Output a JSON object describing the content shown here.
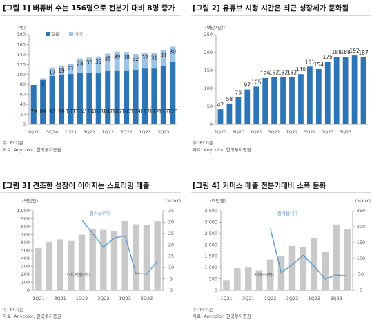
{
  "chart_data": [
    {
      "type": "stacked_bar",
      "title": "[그림 1] 버튜버 수는 156명으로 전분기 대비 8명 증가",
      "ylabel": "(명)",
      "note": "주: FY기준",
      "source": "자료: Anycolor, 한국투자증권",
      "legend": "top-left",
      "categories": [
        "1Q20",
        null,
        "3Q20",
        null,
        "1Q21",
        null,
        "3Q21",
        null,
        "1Q22",
        null,
        "3Q22",
        null,
        "1Q23",
        null,
        "3Q23",
        null
      ],
      "series": [
        {
          "name": "일본",
          "color": "#2e75b6",
          "values": [
            79,
            89,
            97,
            99,
            101,
            104,
            104,
            103,
            107,
            107,
            107,
            109,
            112,
            112,
            118,
            126
          ]
        },
        {
          "name": "미국",
          "color": "#9dc3e6",
          "values": [
            null,
            3,
            17,
            19,
            21,
            28,
            30,
            33,
            35,
            39,
            38,
            32,
            32,
            31,
            31,
            30
          ]
        }
      ],
      "ylim": [
        0,
        180
      ],
      "yticks": [
        0,
        20,
        40,
        60,
        80,
        100,
        120,
        140,
        160,
        180
      ]
    },
    {
      "type": "bar",
      "title": "[그림 2] 유튜브 시청 시간은 최근 성장세가 둔화됨",
      "ylabel": "(백만시간)",
      "note": "주: FY기준",
      "source": "자료: Anycolor, 한국투자증권",
      "categories": [
        "1Q20",
        null,
        "3Q20",
        null,
        "1Q21",
        null,
        "3Q21",
        null,
        "1Q22",
        null,
        "3Q22",
        null,
        "1Q23",
        null,
        "3Q23",
        null,
        null
      ],
      "series": [
        {
          "name": "유튜브 시청 시간",
          "color": "#2e75b6",
          "values": [
            42,
            58,
            76,
            97,
            105,
            129,
            132,
            132,
            132,
            140,
            161,
            154,
            175,
            188,
            188,
            192,
            187
          ]
        }
      ],
      "ylim": [
        0,
        250
      ],
      "yticks": [
        0,
        50,
        100,
        150,
        200,
        250
      ]
    },
    {
      "type": "combo",
      "title": "[그림 3] 견조한 성장이 이어지는 스트리밍 매출",
      "ylabel": "(백만엔)",
      "y2label": "(%YoY)",
      "note": "주: FY기준",
      "source": "자료: Anycolor, 한국투자증권",
      "categories": [
        "1Q21",
        null,
        "3Q21",
        null,
        "1Q22",
        null,
        "3Q22",
        null,
        "1Q23",
        null,
        "3Q23",
        null
      ],
      "series": [
        {
          "name": "스트리밍(좌)",
          "type": "bar",
          "color": "#c9c9c9",
          "values": [
            530,
            610,
            640,
            620,
            700,
            770,
            760,
            740,
            870,
            830,
            820,
            870
          ]
        },
        {
          "name": "증가율(우)",
          "type": "line",
          "axis": "y2",
          "color": "#5b9bd5",
          "values": [
            null,
            null,
            null,
            null,
            31,
            25,
            19,
            23,
            24,
            7.5,
            7,
            13
          ]
        }
      ],
      "ylim": [
        0,
        1000
      ],
      "yticks": [
        0,
        100,
        200,
        300,
        400,
        500,
        600,
        700,
        800,
        900,
        {
          "value": 1000,
          "label": "1,000"
        }
      ],
      "y2lim": [
        0,
        35
      ],
      "y2ticks": [
        0,
        5,
        10,
        15,
        20,
        25,
        30,
        35
      ]
    },
    {
      "type": "combo",
      "title": "[그림 4] 커머스 매출 전분기대비 소폭 둔화",
      "ylabel": "(백만엔)",
      "y2label": "(%YoY)",
      "note": "주: FY기준",
      "source": "자료: Anycolor, 한국투자증권",
      "categories": [
        "1Q21",
        null,
        "3Q21",
        null,
        "1Q22",
        null,
        "3Q22",
        null,
        "1Q23",
        null,
        "3Q23",
        null
      ],
      "series": [
        {
          "name": "커머스(좌)",
          "type": "bar",
          "color": "#c9c9c9",
          "values": [
            450,
            970,
            1000,
            870,
            1350,
            1500,
            1950,
            1900,
            2280,
            1700,
            2900,
            2700
          ]
        },
        {
          "name": "증가율(우)",
          "type": "line",
          "axis": "y2",
          "color": "#5b9bd5",
          "values": [
            null,
            null,
            null,
            null,
            195,
            55,
            80,
            110,
            75,
            35,
            48,
            45
          ]
        }
      ],
      "ylim": [
        0,
        3500
      ],
      "yticks": [
        0,
        500,
        {
          "value": 1000,
          "label": "1,000"
        },
        {
          "value": 1500,
          "label": "1,500"
        },
        {
          "value": 2000,
          "label": "2,000"
        },
        {
          "value": 2500,
          "label": "2,500"
        },
        {
          "value": 3000,
          "label": "3,000"
        },
        {
          "value": 3500,
          "label": "3,500"
        }
      ],
      "y2lim": [
        0,
        250
      ],
      "y2ticks": [
        0,
        50,
        100,
        150,
        200,
        250
      ]
    }
  ]
}
